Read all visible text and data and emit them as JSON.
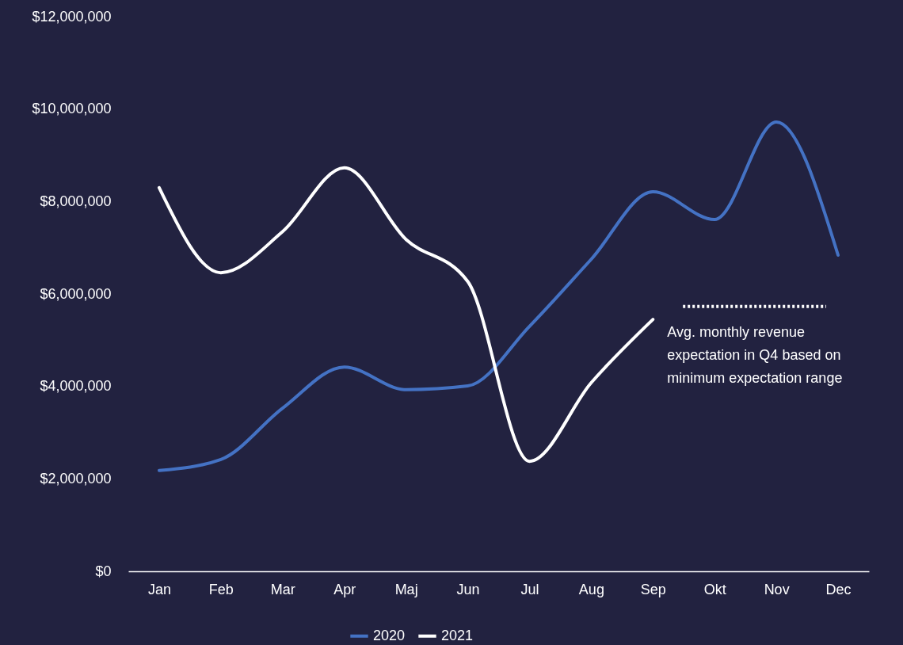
{
  "chart_data": {
    "type": "line",
    "categories": [
      "Jan",
      "Feb",
      "Mar",
      "Apr",
      "Maj",
      "Jun",
      "Jul",
      "Aug",
      "Sep",
      "Okt",
      "Nov",
      "Dec"
    ],
    "series": [
      {
        "name": "2020",
        "color": "#4472c4",
        "values": [
          2180000,
          2420000,
          3530000,
          4420000,
          3930000,
          4010000,
          5300000,
          6750000,
          8210000,
          7610000,
          9720000,
          6840000
        ]
      },
      {
        "name": "2021",
        "color": "#ffffff",
        "values": [
          8300000,
          6460000,
          7350000,
          8730000,
          7180000,
          6270000,
          2380000,
          4080000,
          5450000,
          null,
          null,
          null
        ]
      }
    ],
    "ylim": [
      0,
      12000000
    ],
    "yticks": [
      {
        "value": 0,
        "label": "$0"
      },
      {
        "value": 2000000,
        "label": "$2,000,000"
      },
      {
        "value": 4000000,
        "label": "$4,000,000"
      },
      {
        "value": 6000000,
        "label": "$6,000,000"
      },
      {
        "value": 8000000,
        "label": "$8,000,000"
      },
      {
        "value": 10000000,
        "label": "$10,000,000"
      },
      {
        "value": 12000000,
        "label": "$12,000,000"
      }
    ],
    "ref_lines": [
      {
        "axis": "y",
        "value": 5730000,
        "label": "Avg. monthly revenue expectation in Q4 based on minimum expectation range",
        "color": "#ffffff",
        "line_style": "dotted"
      }
    ],
    "grid": false,
    "legend": "bottom",
    "marker": "none",
    "line_style": "solid"
  }
}
